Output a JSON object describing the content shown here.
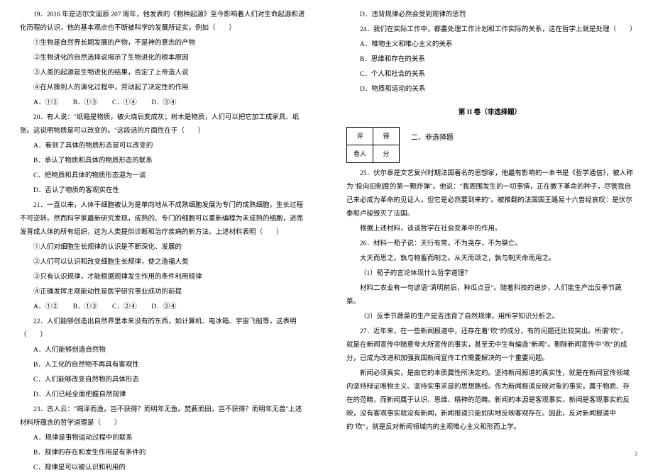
{
  "left": {
    "q19_lead": "19．2016 年是达尔文诞辰 207 周年，他发表的《物种起源》至今影响着人们对生命起源和进化历程的认识，他的基本观点也不断被科学的发展所证实。例如（　　）",
    "q19_s1": "①生物是自然界长期发展的产物，不是神的意志的产物",
    "q19_s2": "②生物进化的自然选择说揭示了生物进化的根本原因",
    "q19_s3": "③人类的起源是生物进化的结果，否定了上帝造人说",
    "q19_s4": "④在从猿到人的演化过程中，劳动起了决定性的作用",
    "q19_opts": [
      "A．①②",
      "B．①③",
      "C．①④",
      "D．③④"
    ],
    "q20": "20．有人说：\"纸箱是物质，被火烧后变成灰；树木是物质，人们可以把它加工成家具、纸张。这说明物质是可以改变的。\"这段话的片面性在于（　　）",
    "q20_a": "A．看到了具体的物质形态是可以改变的",
    "q20_b": "B．承认了物质和具体的物质形态的联系",
    "q20_c": "C．把物质和具体的物质形态混为一谈",
    "q20_d": "D．否认了物质的客观实在性",
    "q21": "21．一直以来，人体干细胞被认为是单向地从不成熟细胞发展为专门的成熟细胞，生长过程不可逆转。然而科学家最新研究发现，成熟的、专门的细胞可以重新编程为未成熟的细胞，进而发育成人体的所有组织，这为人类提供诊断和治疗疾病的新方法。上述材料表明（　　）",
    "q21_s1": "①人们对细胞生长规律的认识是不断深化、发展的",
    "q21_s2": "②人们可以认识和改变细胞生长规律，使之造福人类",
    "q21_s3": "③只有认识规律，才能根据规律发生作用的条件利用规律",
    "q21_s4": "④正确发挥主观能动性是医学研究事业成功的前提",
    "q21_opts": [
      "A．①②",
      "B．①③",
      "C．②④",
      "D．③④"
    ],
    "q22": "22．人们能够创造出自然界里本来没有的东西，如计算机、电冰箱、宇宙飞船等，这表明（　　）",
    "q22_a": "A．人们能够创造自然物",
    "q22_b": "B．人工化的自然物不再具有客观性",
    "q22_c": "C．人们能够改变自然物的具体形态",
    "q22_d": "D．人们已经全面把握自然规律",
    "q23": "23．古人云：\"竭泽而渔，岂不获得？而明年无鱼。焚薮而田，岂不获得？而明年无兽\"上述材料所蕴含的哲学道理是（　　）",
    "q23_a": "A．规律是事物运动过程中的联系",
    "q23_b": "B．规律的存在和发生作用是有条件的",
    "q23_c": "C．规律是可以被认识和利用的"
  },
  "right": {
    "q23_d": "D．违背规律必然会受到规律的惩罚",
    "q24": "24．我们在实际工作中，都要处理工作计划和工作实际的关系，这在哲学上就是处理（　　）",
    "q24_a": "A．唯物主义和唯心主义的关系",
    "q24_b": "B．思维和存在的关系",
    "q24_c": "C．个人和社会的关系",
    "q24_d": "D．物质和运动的关系",
    "part2_title": "第 II 卷（非选择题）",
    "score_table": {
      "r1c1": "评",
      "r1c2": "得",
      "r2c1": "卷人",
      "r2c2": "分"
    },
    "section2_label": "二、非选择题",
    "q25_p1": "25．伏尔泰是文艺复兴时期法国著名的思想家，他最有影响的一本书是《哲学通信》，被人称为\"投向旧制度的第一颗炸弹\"。他说：\"我周围发生的一切事情，正在撒下革命的种子，尽管我自己未必成为革命的见证人，但它是必然要到来的\"。被推翻的法国国王路易十六曾经哀叹：是伏尔泰和卢梭毁灭了法国。",
    "q25_p2": "根据上述材料，谈谈哲学在社会变革中的作用。",
    "q26": "26．材料一荀子说：天行有常，不为尧存，不为桀亡。",
    "q26_p2": "大天而思之，孰与物畜而制之。从天而颂之，孰与制天命而用之。",
    "q26_q1": "（1）荀子的言论体现什么哲学道理？",
    "q26_p3": "材料二农业有一句谚语\"清明前后，种瓜点豆\"。随着科技的进步，人们能生产出反季节蔬菜。",
    "q26_q2": "（2）反季节蔬菜的生产是否违背了自然规律，用所学知识分析之。",
    "q27_p1": "27．近年来，在一些新闻报道中，还存在着\"吹\"的成分，有的问题还比较突出。所谓\"吹\"，就是在新闻宣传中随意夸大所宣传的事实，甚至无中生有编造\"新闻\"。剔除新闻宣传中\"吹\"的成分，已成为改进和加强我国新闻宣传工作需要解决的一个重要问题。",
    "q27_p2": "新闻必须真实，是由它的本质属性所决定的。坚持新闻报道的真实性，就是在新闻宣传领域内坚持辩证唯物主义、坚持实事求是的思想路线。作为新闻报道反映对象的事实，属于物质、存在的范畴，而新闻属于认识、思维、精神的范畴。新闻的本源是客观事实，新闻是客观事实的反映，没有客观事实就没有新闻，新闻报道只能如实地反映客观存在。因此，反对新闻报道中的\"吹\"，就是反对新闻领域内的主观唯心主义和形而上学。"
  },
  "pagenum": "3"
}
